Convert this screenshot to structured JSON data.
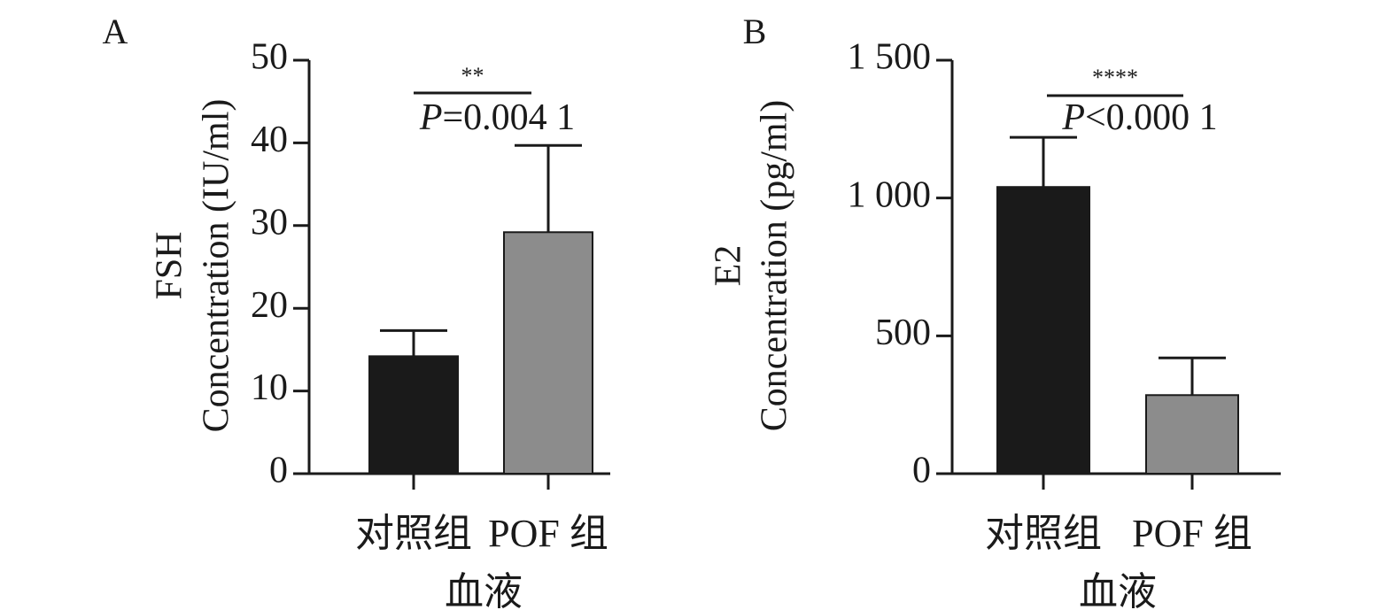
{
  "chart_data": [
    {
      "type": "bar",
      "panel_label": "A",
      "ylabel_line1": "FSH",
      "ylabel_line2": "Concentration (IU/ml)",
      "xlabel": "血液",
      "categories": [
        "对照组",
        "POF 组"
      ],
      "values": [
        14.2,
        29.2
      ],
      "errors": [
        3.1,
        10.5
      ],
      "bar_colors": [
        "#1a1a1a",
        "#8c8c8c"
      ],
      "ylim": [
        0,
        50
      ],
      "yticks": [
        0,
        10,
        20,
        30,
        40,
        50
      ],
      "ytick_labels": [
        "0",
        "10",
        "20",
        "30",
        "40",
        "50"
      ],
      "significance": {
        "stars": "**",
        "p_prefix": "P",
        "p_text": "=0.004 1"
      }
    },
    {
      "type": "bar",
      "panel_label": "B",
      "ylabel_line1": "E2",
      "ylabel_line2": "Concentration (pg/ml)",
      "xlabel": "血液",
      "categories": [
        "对照组",
        "POF 组"
      ],
      "values": [
        1040,
        285
      ],
      "errors": [
        180,
        135
      ],
      "bar_colors": [
        "#1a1a1a",
        "#8c8c8c"
      ],
      "ylim": [
        0,
        1500
      ],
      "yticks": [
        0,
        500,
        1000,
        1500
      ],
      "ytick_labels": [
        "0",
        "500",
        "1 000",
        "1 500"
      ],
      "significance": {
        "stars": "****",
        "p_prefix": "P",
        "p_text": "<0.000 1"
      }
    }
  ]
}
